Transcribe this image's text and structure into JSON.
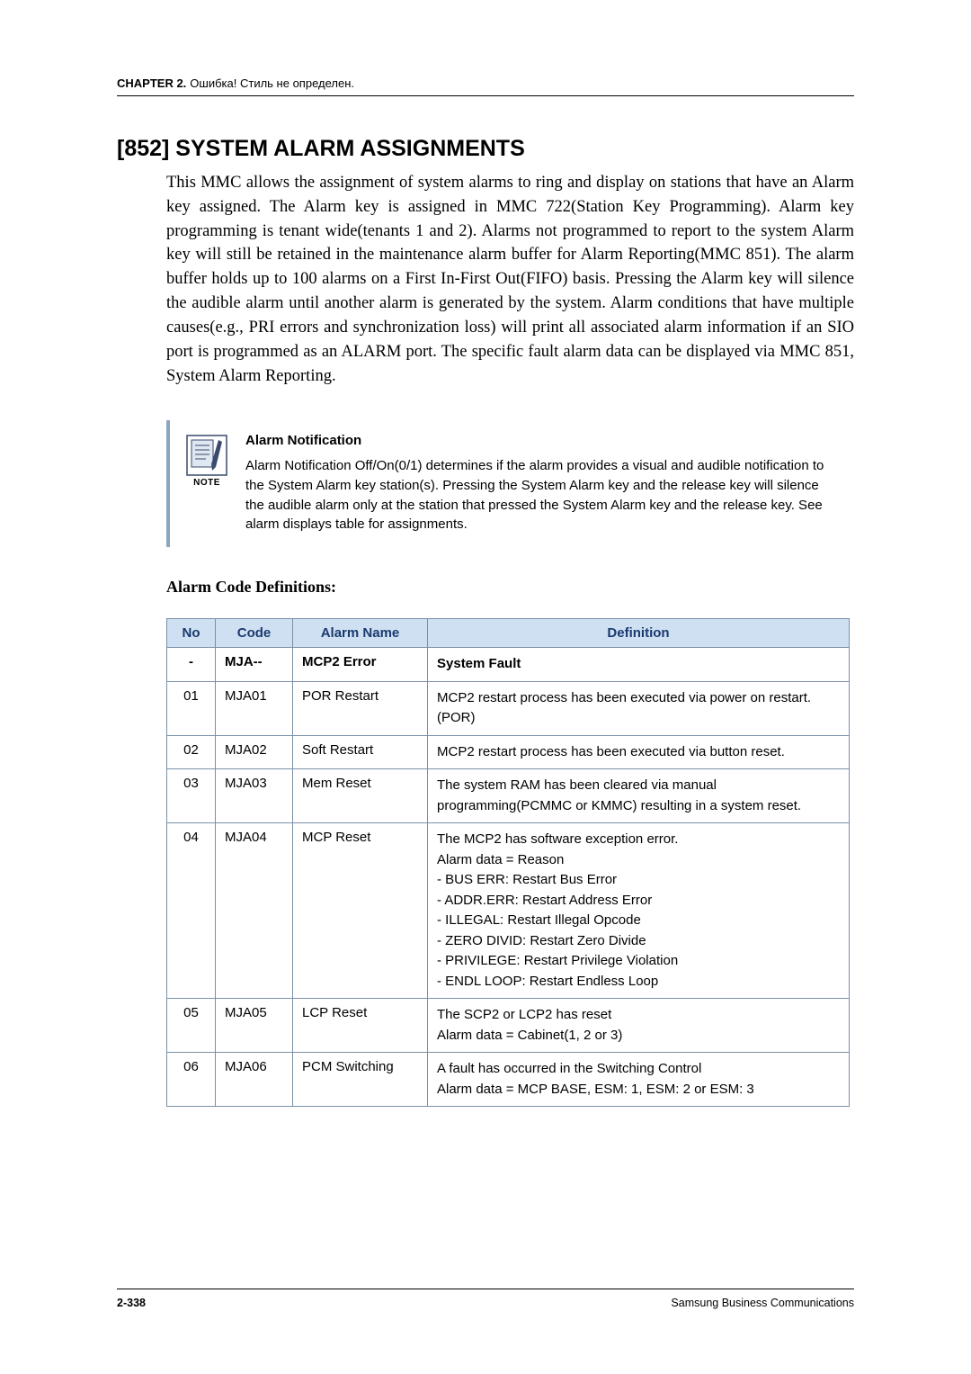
{
  "header": {
    "chapter": "CHAPTER 2.",
    "rest": " Ошибка! Стиль не определен."
  },
  "section": {
    "title": "[852] SYSTEM ALARM ASSIGNMENTS",
    "body": "This MMC allows the assignment of system alarms to ring and display on stations that have an Alarm key assigned. The Alarm key is assigned in MMC 722(Station Key Programming). Alarm key programming is tenant wide(tenants 1 and 2). Alarms not programmed to report to the system Alarm key will still be retained in the maintenance alarm buffer for Alarm Reporting(MMC 851). The alarm buffer holds up to 100 alarms on a First In-First Out(FIFO) basis. Pressing the Alarm key will silence the audible alarm until another alarm is generated by the system. Alarm conditions that have multiple causes(e.g., PRI errors and synchronization loss) will print all associated alarm information if an SIO port is programmed as an ALARM port. The specific fault alarm data can be displayed via MMC 851, System Alarm Reporting."
  },
  "note": {
    "label": "NOTE",
    "title": "Alarm Notification",
    "body": "Alarm Notification Off/On(0/1) determines if the alarm provides a visual and audible notification to the System Alarm key station(s). Pressing the System Alarm key and the release key will silence the audible alarm only at the station that pressed the System Alarm key and the release key. See alarm displays table for assignments."
  },
  "definitions_heading": "Alarm Code Definitions:",
  "table": {
    "columns": [
      "No",
      "Code",
      "Alarm Name",
      "Definition"
    ],
    "header_bg": "#cfe0f2",
    "header_color": "#1a3a6e",
    "border_color": "#7a90a8",
    "rows": [
      {
        "no": "-",
        "code": "MJA--",
        "name": "MCP2 Error",
        "definition": [
          "System Fault"
        ],
        "bold": true
      },
      {
        "no": "01",
        "code": "MJA01",
        "name": "POR Restart",
        "definition": [
          "MCP2 restart process has been executed via power on restart.(POR)"
        ]
      },
      {
        "no": "02",
        "code": "MJA02",
        "name": "Soft Restart",
        "definition": [
          "MCP2 restart process has been executed via button reset."
        ]
      },
      {
        "no": "03",
        "code": "MJA03",
        "name": "Mem Reset",
        "definition": [
          "The system RAM has been cleared via manual programming(PCMMC or KMMC) resulting in a system reset."
        ]
      },
      {
        "no": "04",
        "code": "MJA04",
        "name": "MCP Reset",
        "definition": [
          "The MCP2 has software exception error.",
          "Alarm data = Reason",
          "- BUS ERR: Restart Bus Error",
          "- ADDR.ERR: Restart Address Error",
          "- ILLEGAL: Restart Illegal Opcode",
          "- ZERO DIVID: Restart Zero Divide",
          "- PRIVILEGE: Restart Privilege Violation",
          "- ENDL LOOP: Restart Endless Loop"
        ]
      },
      {
        "no": "05",
        "code": "MJA05",
        "name": "LCP Reset",
        "definition": [
          "The SCP2 or LCP2 has reset",
          "Alarm data = Cabinet(1, 2 or 3)"
        ]
      },
      {
        "no": "06",
        "code": "MJA06",
        "name": "PCM Switching",
        "definition": [
          "A fault has occurred in the Switching Control",
          "Alarm data = MCP BASE, ESM: 1, ESM: 2 or ESM: 3"
        ]
      }
    ]
  },
  "footer": {
    "page": "2-338",
    "company": "Samsung Business Communications"
  }
}
